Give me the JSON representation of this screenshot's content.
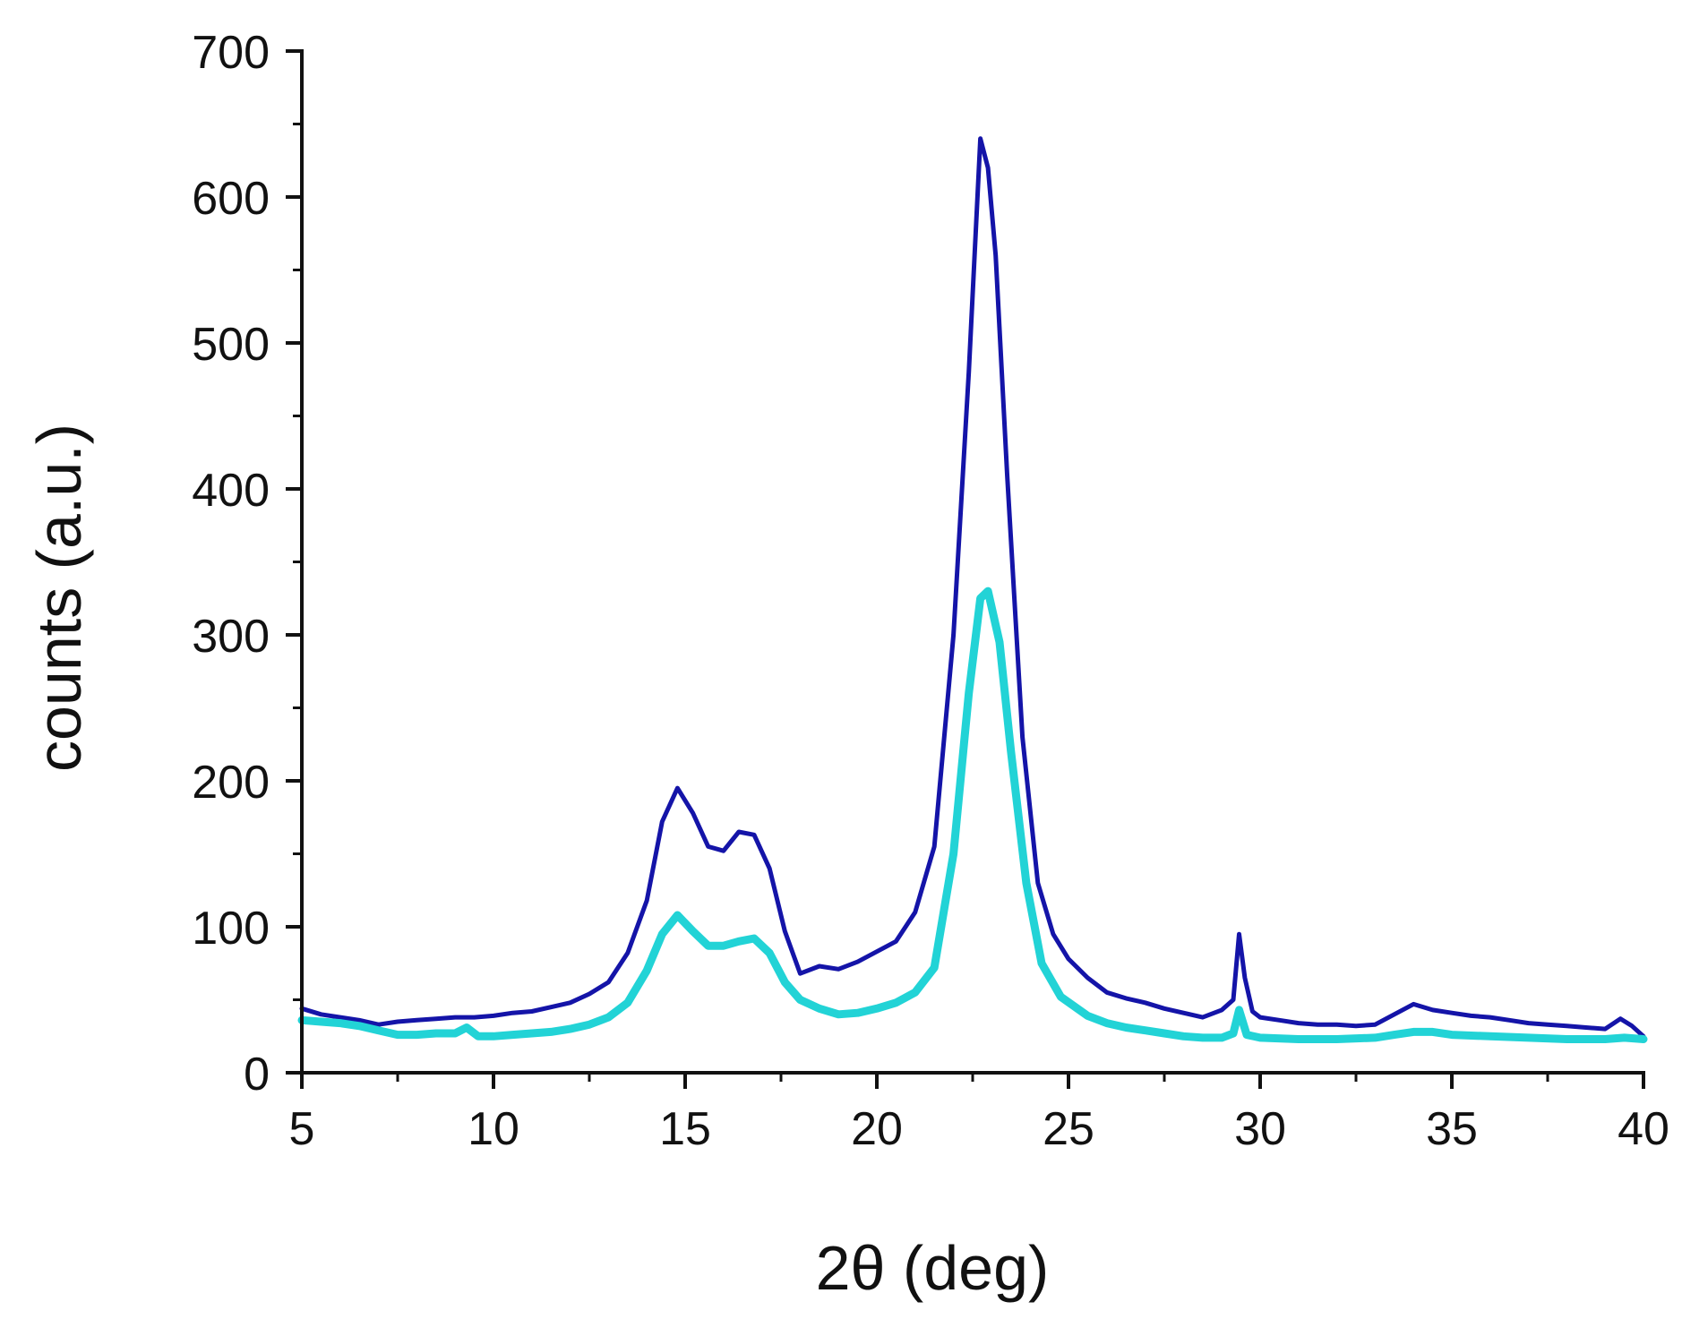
{
  "chart_data": {
    "type": "line",
    "title": "",
    "xlabel": "2θ (deg)",
    "ylabel": "counts (a.u.)",
    "xlim": [
      5,
      40
    ],
    "ylim": [
      0,
      700
    ],
    "x_ticks": [
      5,
      10,
      15,
      20,
      25,
      30,
      35,
      40
    ],
    "y_ticks": [
      0,
      100,
      200,
      300,
      400,
      500,
      600,
      700
    ],
    "grid": false,
    "legend": "none",
    "series": [
      {
        "color": "#1414a8",
        "points": [
          [
            5,
            44
          ],
          [
            5.5,
            40
          ],
          [
            6,
            38
          ],
          [
            6.5,
            36
          ],
          [
            7,
            33
          ],
          [
            7.5,
            35
          ],
          [
            8,
            36
          ],
          [
            8.5,
            37
          ],
          [
            9,
            38
          ],
          [
            9.5,
            38
          ],
          [
            10,
            39
          ],
          [
            10.5,
            41
          ],
          [
            11,
            42
          ],
          [
            11.5,
            45
          ],
          [
            12,
            48
          ],
          [
            12.5,
            54
          ],
          [
            13,
            62
          ],
          [
            13.5,
            82
          ],
          [
            14,
            118
          ],
          [
            14.4,
            172
          ],
          [
            14.8,
            195
          ],
          [
            15.2,
            178
          ],
          [
            15.6,
            155
          ],
          [
            16,
            152
          ],
          [
            16.4,
            165
          ],
          [
            16.8,
            163
          ],
          [
            17.2,
            140
          ],
          [
            17.6,
            97
          ],
          [
            18,
            68
          ],
          [
            18.5,
            73
          ],
          [
            19,
            71
          ],
          [
            19.5,
            76
          ],
          [
            20,
            83
          ],
          [
            20.5,
            90
          ],
          [
            21,
            110
          ],
          [
            21.5,
            155
          ],
          [
            22,
            300
          ],
          [
            22.4,
            480
          ],
          [
            22.7,
            640
          ],
          [
            22.9,
            620
          ],
          [
            23.1,
            560
          ],
          [
            23.4,
            410
          ],
          [
            23.8,
            230
          ],
          [
            24.2,
            130
          ],
          [
            24.6,
            95
          ],
          [
            25,
            78
          ],
          [
            25.5,
            65
          ],
          [
            26,
            55
          ],
          [
            26.5,
            51
          ],
          [
            27,
            48
          ],
          [
            27.5,
            44
          ],
          [
            28,
            41
          ],
          [
            28.5,
            38
          ],
          [
            29,
            43
          ],
          [
            29.3,
            50
          ],
          [
            29.45,
            95
          ],
          [
            29.6,
            65
          ],
          [
            29.8,
            42
          ],
          [
            30,
            38
          ],
          [
            30.5,
            36
          ],
          [
            31,
            34
          ],
          [
            31.5,
            33
          ],
          [
            32,
            33
          ],
          [
            32.5,
            32
          ],
          [
            33,
            33
          ],
          [
            33.5,
            40
          ],
          [
            34,
            47
          ],
          [
            34.5,
            43
          ],
          [
            35,
            41
          ],
          [
            35.5,
            39
          ],
          [
            36,
            38
          ],
          [
            36.5,
            36
          ],
          [
            37,
            34
          ],
          [
            37.5,
            33
          ],
          [
            38,
            32
          ],
          [
            38.5,
            31
          ],
          [
            39,
            30
          ],
          [
            39.4,
            37
          ],
          [
            39.7,
            32
          ],
          [
            40,
            25
          ]
        ]
      },
      {
        "color": "#22d3d6",
        "points": [
          [
            5,
            36
          ],
          [
            5.5,
            35
          ],
          [
            6,
            34
          ],
          [
            6.5,
            32
          ],
          [
            7,
            29
          ],
          [
            7.5,
            26
          ],
          [
            8,
            26
          ],
          [
            8.5,
            27
          ],
          [
            9,
            27
          ],
          [
            9.3,
            31
          ],
          [
            9.6,
            25
          ],
          [
            10,
            25
          ],
          [
            10.5,
            26
          ],
          [
            11,
            27
          ],
          [
            11.5,
            28
          ],
          [
            12,
            30
          ],
          [
            12.5,
            33
          ],
          [
            13,
            38
          ],
          [
            13.5,
            48
          ],
          [
            14,
            70
          ],
          [
            14.4,
            95
          ],
          [
            14.8,
            108
          ],
          [
            15.2,
            97
          ],
          [
            15.6,
            87
          ],
          [
            16,
            87
          ],
          [
            16.4,
            90
          ],
          [
            16.8,
            92
          ],
          [
            17.2,
            82
          ],
          [
            17.6,
            62
          ],
          [
            18,
            50
          ],
          [
            18.5,
            44
          ],
          [
            19,
            40
          ],
          [
            19.5,
            41
          ],
          [
            20,
            44
          ],
          [
            20.5,
            48
          ],
          [
            21,
            55
          ],
          [
            21.5,
            72
          ],
          [
            22,
            150
          ],
          [
            22.4,
            260
          ],
          [
            22.7,
            325
          ],
          [
            22.9,
            330
          ],
          [
            23.2,
            295
          ],
          [
            23.5,
            220
          ],
          [
            23.9,
            130
          ],
          [
            24.3,
            75
          ],
          [
            24.8,
            52
          ],
          [
            25.5,
            39
          ],
          [
            26,
            34
          ],
          [
            26.5,
            31
          ],
          [
            27,
            29
          ],
          [
            27.5,
            27
          ],
          [
            28,
            25
          ],
          [
            28.5,
            24
          ],
          [
            29,
            24
          ],
          [
            29.3,
            27
          ],
          [
            29.45,
            43
          ],
          [
            29.65,
            26
          ],
          [
            30,
            24
          ],
          [
            31,
            23
          ],
          [
            32,
            23
          ],
          [
            33,
            24
          ],
          [
            33.5,
            26
          ],
          [
            34,
            28
          ],
          [
            34.5,
            28
          ],
          [
            35,
            26
          ],
          [
            36,
            25
          ],
          [
            37,
            24
          ],
          [
            38,
            23
          ],
          [
            39,
            23
          ],
          [
            39.5,
            24
          ],
          [
            40,
            23
          ]
        ]
      }
    ]
  }
}
